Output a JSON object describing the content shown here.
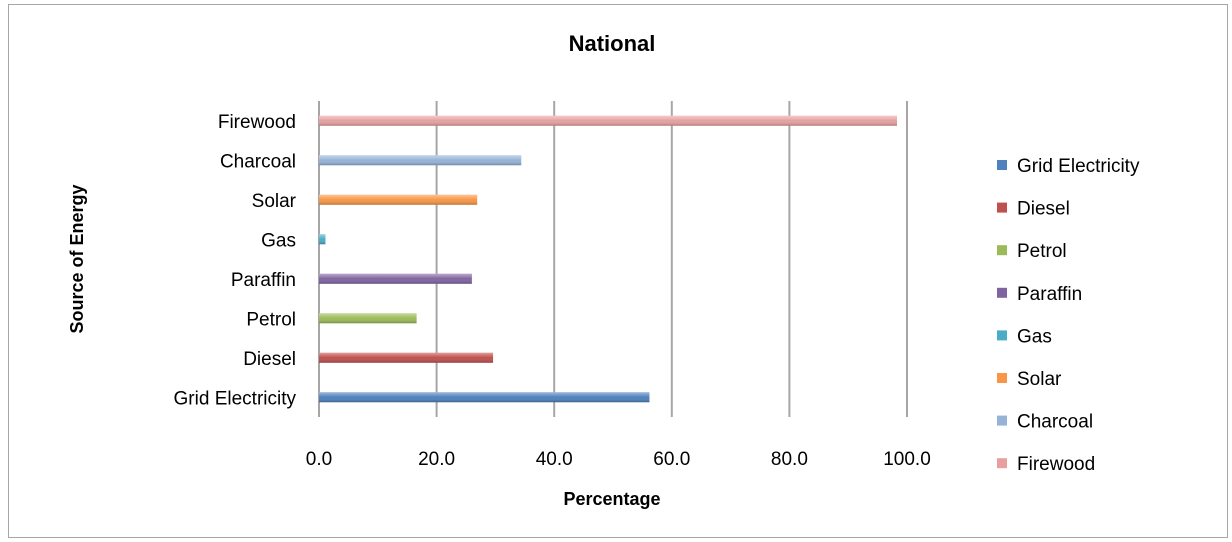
{
  "chart_data": {
    "type": "bar",
    "orientation": "horizontal",
    "title": "National",
    "xlabel": "Percentage",
    "ylabel": "Source of Energy",
    "categories": [
      "Grid Electricity",
      "Diesel",
      "Petrol",
      "Paraffin",
      "Gas",
      "Solar",
      "Charcoal",
      "Firewood"
    ],
    "values": [
      56.2,
      29.6,
      16.6,
      26.0,
      1.1,
      26.9,
      34.4,
      98.3
    ],
    "colors": [
      "#4f81bd",
      "#c0504d",
      "#9bbb59",
      "#8064a2",
      "#4bacc6",
      "#f79646",
      "#95b3d7",
      "#e6a0a0"
    ],
    "xlim": [
      0,
      100
    ],
    "xticks": [
      "0.0",
      "20.0",
      "40.0",
      "60.0",
      "80.0",
      "100.0"
    ],
    "grid": true,
    "legend_position": "right",
    "legend": [
      "Grid Electricity",
      "Diesel",
      "Petrol",
      "Paraffin",
      "Gas",
      "Solar",
      "Charcoal",
      "Firewood"
    ]
  }
}
